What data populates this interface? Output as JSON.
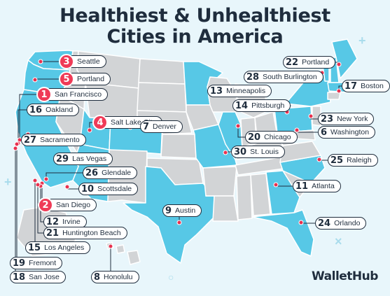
{
  "title_line1": "Healthiest & Unhealthiest",
  "title_line2": "Cities in America",
  "brand": "WalletHub",
  "colors": {
    "background": "#e8f6fb",
    "highlight_state": "#57c8e6",
    "other_state": "#d2d4d6",
    "border": "#ffffff",
    "text": "#1f2d3d",
    "top_rank_badge": "#ef3b57",
    "marker": "#e8314f"
  },
  "cities": [
    {
      "rank": "3",
      "name": "Seattle",
      "top": true
    },
    {
      "rank": "5",
      "name": "Portland",
      "top": true
    },
    {
      "rank": "1",
      "name": "San Francisco",
      "top": true
    },
    {
      "rank": "16",
      "name": "Oakland",
      "top": false
    },
    {
      "rank": "4",
      "name": "Salt Lake City",
      "top": true
    },
    {
      "rank": "27",
      "name": "Sacramento",
      "top": false
    },
    {
      "rank": "7",
      "name": "Denver",
      "top": false
    },
    {
      "rank": "29",
      "name": "Las Vegas",
      "top": false
    },
    {
      "rank": "26",
      "name": "Glendale",
      "top": false
    },
    {
      "rank": "10",
      "name": "Scottsdale",
      "top": false
    },
    {
      "rank": "2",
      "name": "San Diego",
      "top": true
    },
    {
      "rank": "12",
      "name": "Irvine",
      "top": false
    },
    {
      "rank": "21",
      "name": "Huntington Beach",
      "top": false
    },
    {
      "rank": "15",
      "name": "Los Angeles",
      "top": false
    },
    {
      "rank": "19",
      "name": "Fremont",
      "top": false
    },
    {
      "rank": "18",
      "name": "San Jose",
      "top": false
    },
    {
      "rank": "8",
      "name": "Honolulu",
      "top": false
    },
    {
      "rank": "9",
      "name": "Austin",
      "top": false
    },
    {
      "rank": "13",
      "name": "Minneapolis",
      "top": false
    },
    {
      "rank": "14",
      "name": "Pittsburgh",
      "top": false
    },
    {
      "rank": "20",
      "name": "Chicago",
      "top": false
    },
    {
      "rank": "30",
      "name": "St. Louis",
      "top": false
    },
    {
      "rank": "22",
      "name": "Portland",
      "top": false
    },
    {
      "rank": "28",
      "name": "South Burlington",
      "top": false
    },
    {
      "rank": "17",
      "name": "Boston",
      "top": false
    },
    {
      "rank": "23",
      "name": "New York",
      "top": false
    },
    {
      "rank": "6",
      "name": "Washington",
      "top": false
    },
    {
      "rank": "25",
      "name": "Raleigh",
      "top": false
    },
    {
      "rank": "11",
      "name": "Atlanta",
      "top": false
    },
    {
      "rank": "24",
      "name": "Orlando",
      "top": false
    }
  ]
}
